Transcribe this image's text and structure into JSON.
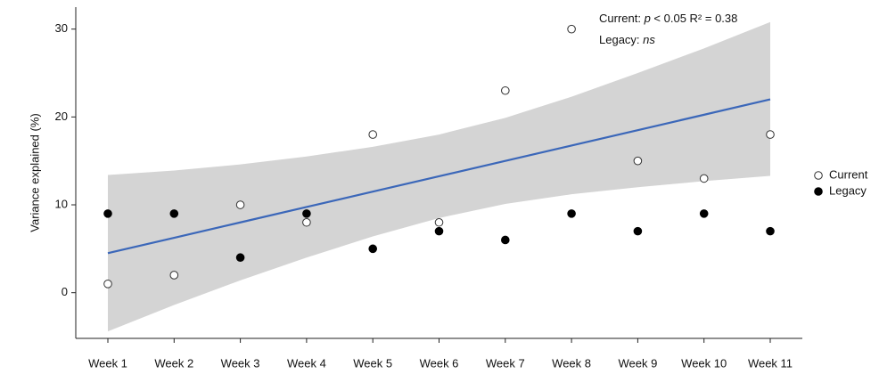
{
  "chart_data": {
    "type": "scatter",
    "y_label": "Variance explained (%)",
    "categories": [
      "Week 1",
      "Week 2",
      "Week 3",
      "Week 4",
      "Week 5",
      "Week 6",
      "Week 7",
      "Week 8",
      "Week 9",
      "Week 10",
      "Week 11"
    ],
    "series": [
      {
        "name": "Current",
        "color": "#333333",
        "marker": "open",
        "values": [
          1,
          2,
          10,
          8,
          18,
          8,
          23,
          30,
          15,
          13,
          18
        ]
      },
      {
        "name": "Legacy",
        "color": "#000000",
        "marker": "filled",
        "values": [
          9,
          9,
          4,
          9,
          5,
          7,
          6,
          9,
          7,
          9,
          7
        ]
      }
    ],
    "fit": [
      4.5,
      6.25,
      8,
      9.75,
      11.5,
      13.25,
      15,
      16.75,
      18.5,
      20.25,
      22
    ],
    "fit_color": "#3b67b9",
    "band_upper": [
      13.4,
      13.9,
      14.6,
      15.5,
      16.6,
      18,
      19.9,
      22.3,
      25,
      27.8,
      30.8
    ],
    "band_lower": [
      -4.4,
      -1.4,
      1.4,
      4.0,
      6.4,
      8.5,
      10.1,
      11.2,
      12,
      12.7,
      13.3
    ],
    "band_color": "#d4d4d4",
    "annotations": [
      [
        "Current: ",
        "p",
        " < 0.05 R² = 0.38"
      ],
      [
        "Legacy: ",
        "ns"
      ]
    ],
    "ylim": [
      -5.2,
      32.5
    ],
    "yticks": [
      0,
      10,
      20,
      30
    ],
    "grid": false,
    "legend": "right"
  }
}
